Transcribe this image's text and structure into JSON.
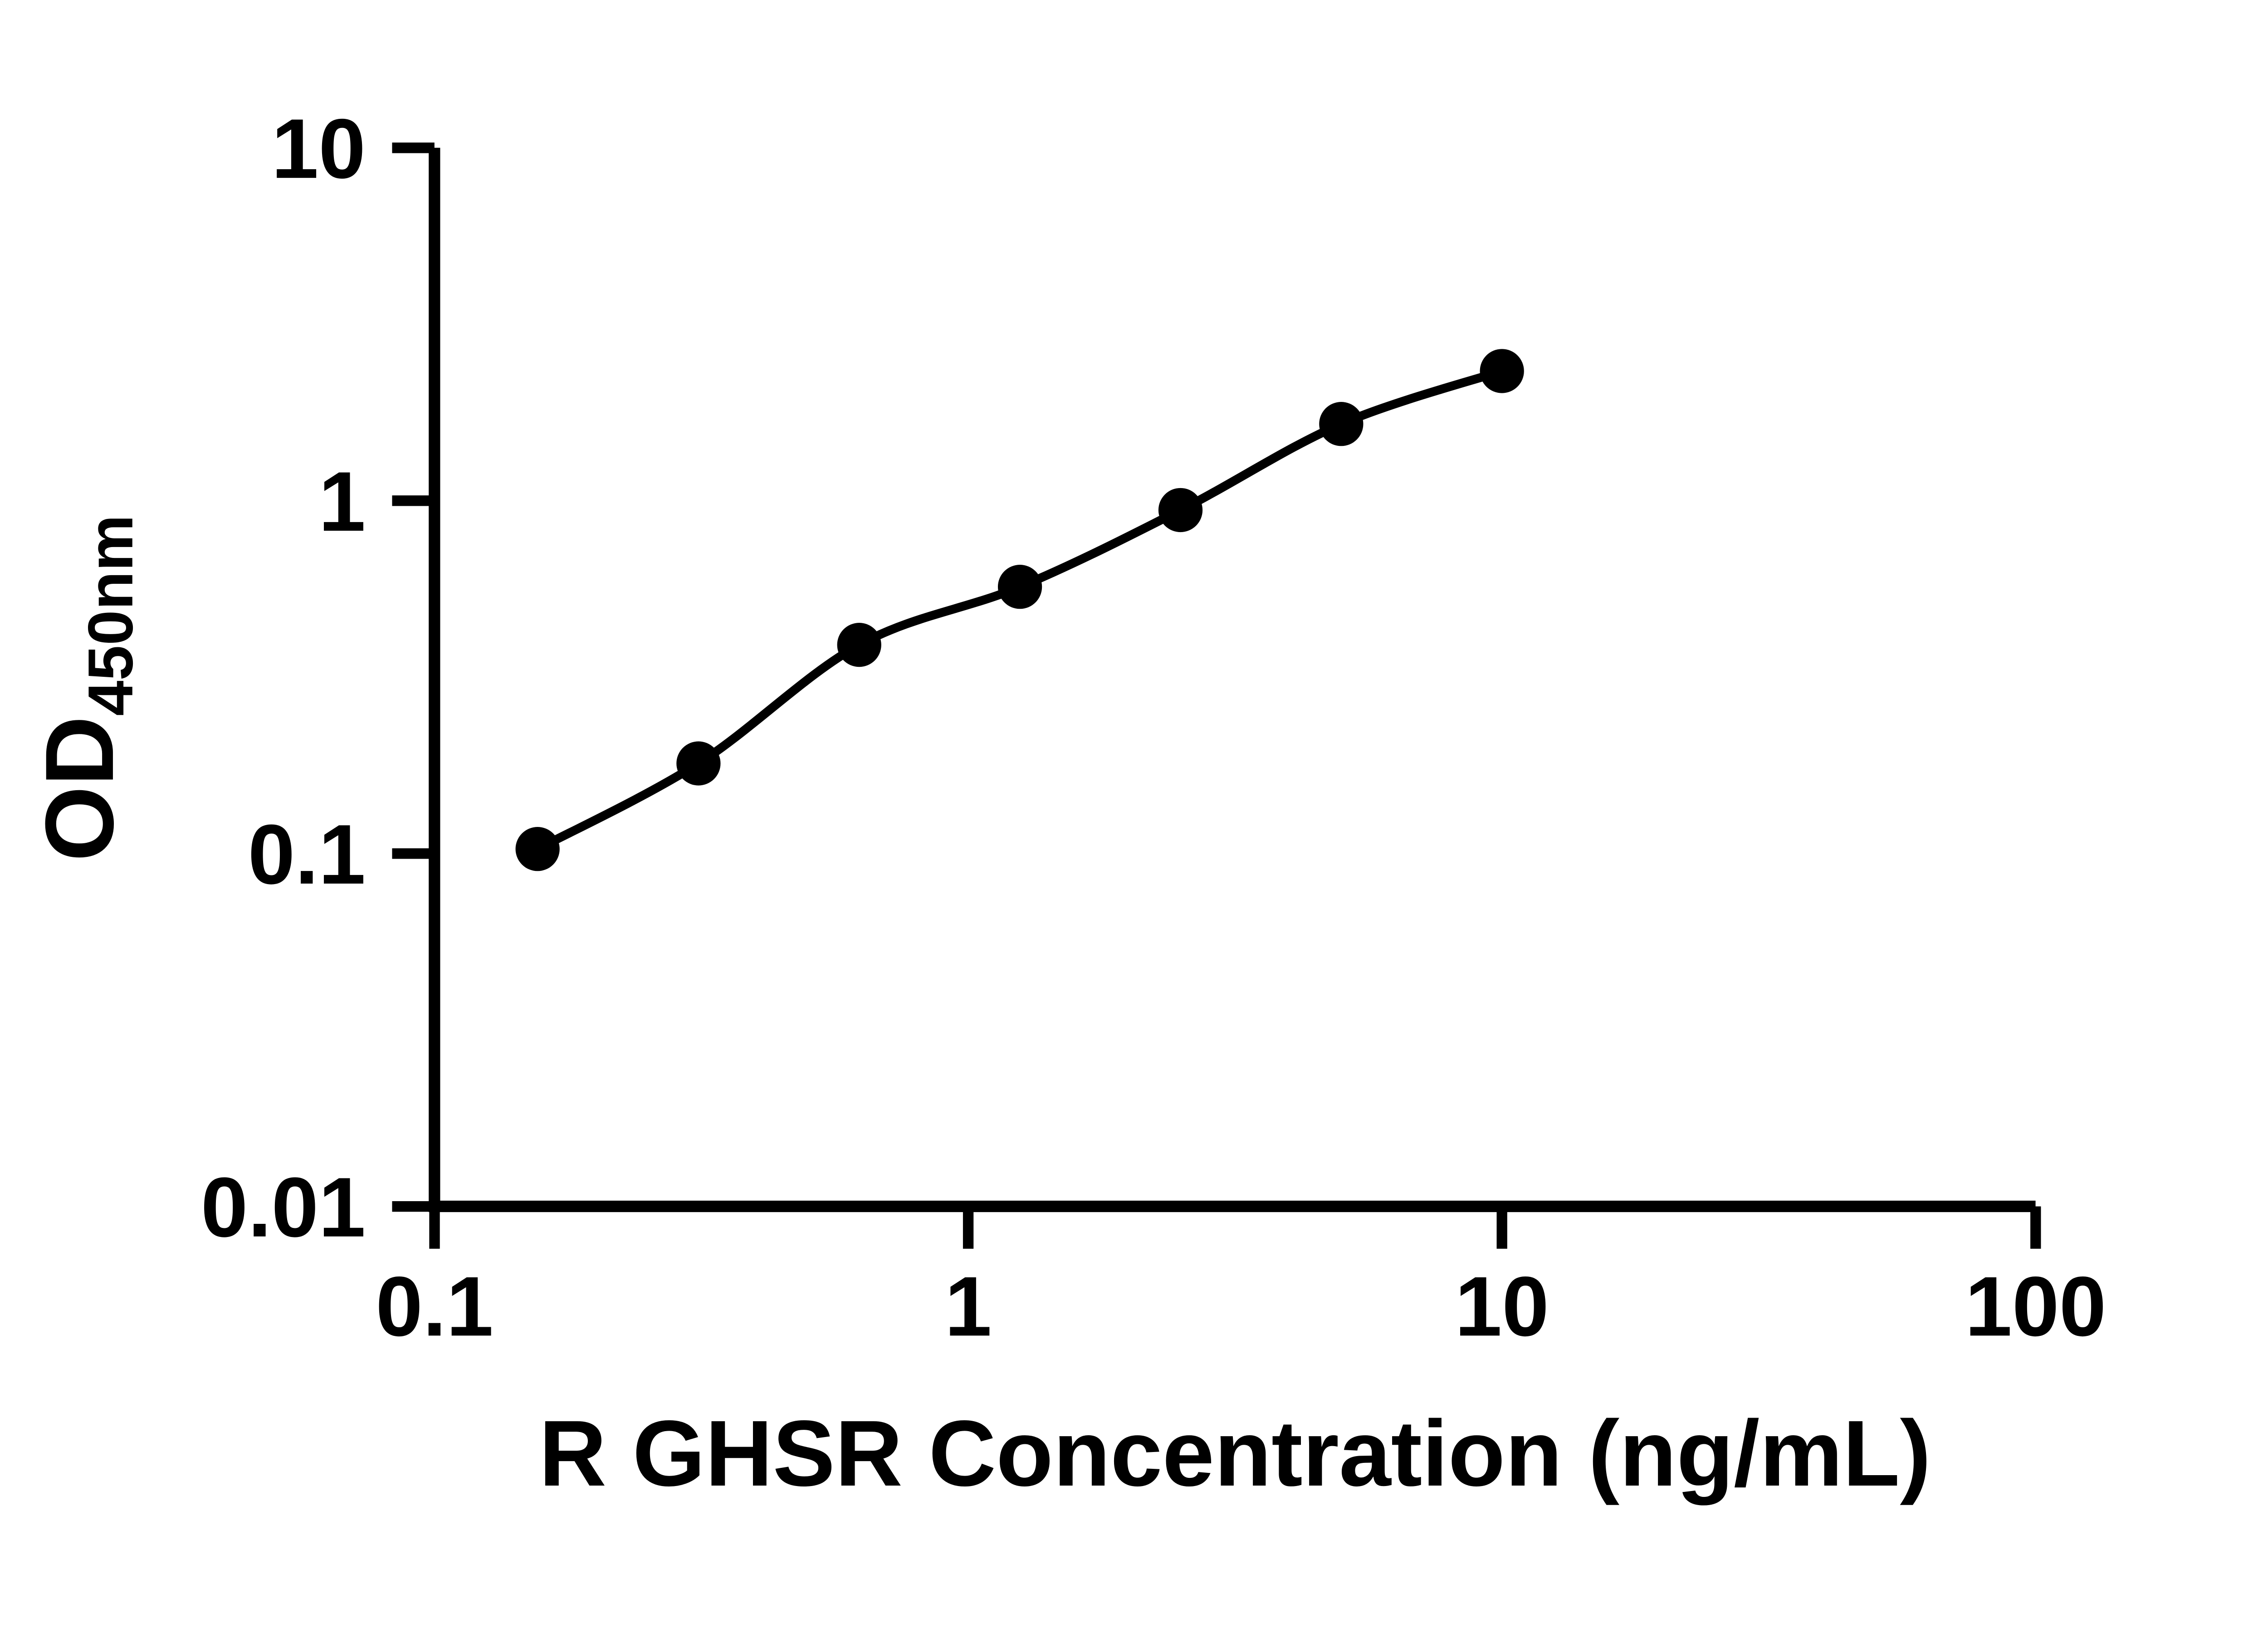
{
  "page": {
    "background": "#ffffff",
    "ink": "#000000"
  },
  "chart_data": {
    "type": "line",
    "subtype": "scatter-points-with-fitted-curve",
    "title": "",
    "xlabel": "R GHSR Concentration (ng/mL)",
    "ylabel_base": "OD",
    "ylabel_subscript": "450nm",
    "x_scale": "log",
    "y_scale": "log",
    "xlim": [
      0.1,
      100
    ],
    "ylim": [
      0.01,
      10
    ],
    "grid": false,
    "legend": false,
    "marker": "filled-circle",
    "marker_color": "#000000",
    "line_color": "#000000",
    "x_ticks": [
      {
        "value": 0.1,
        "label": "0.1"
      },
      {
        "value": 1,
        "label": "1"
      },
      {
        "value": 10,
        "label": "10"
      },
      {
        "value": 100,
        "label": "100"
      }
    ],
    "y_ticks": [
      {
        "value": 10,
        "label": "10"
      },
      {
        "value": 1,
        "label": "1"
      },
      {
        "value": 0.1,
        "label": "0.1"
      },
      {
        "value": 0.01,
        "label": "0.01"
      }
    ],
    "series": [
      {
        "points": [
          {
            "x": 0.156,
            "y": 0.103
          },
          {
            "x": 0.3125,
            "y": 0.18
          },
          {
            "x": 0.625,
            "y": 0.39
          },
          {
            "x": 1.25,
            "y": 0.57
          },
          {
            "x": 2.5,
            "y": 0.94
          },
          {
            "x": 5,
            "y": 1.65
          },
          {
            "x": 10,
            "y": 2.33
          }
        ]
      }
    ]
  }
}
